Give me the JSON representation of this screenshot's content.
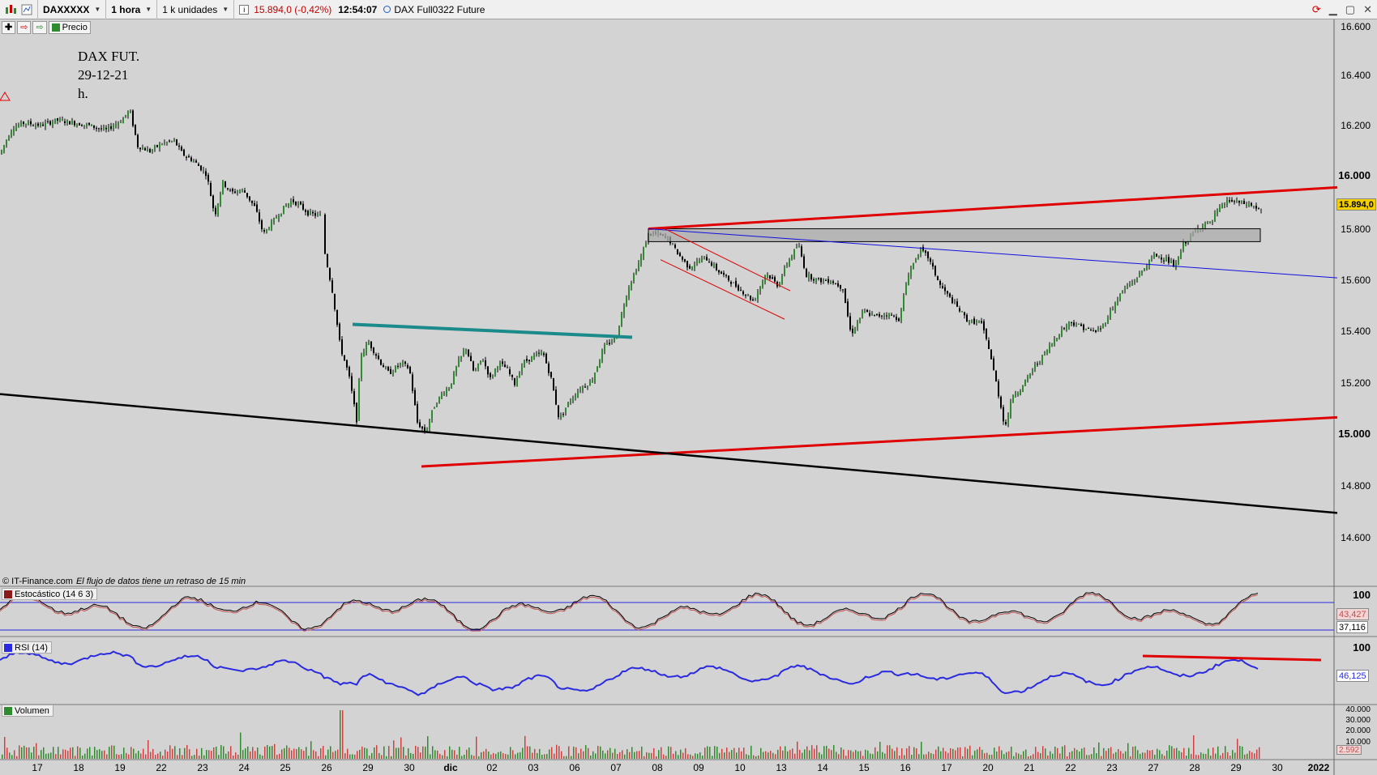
{
  "toolbar": {
    "symbol": "DAXXXXX",
    "interval": "1 hora",
    "units": "1 k unidades",
    "price_change": "15.894,0 (-0,42%)",
    "time": "12:54:07",
    "instrument": "DAX Full0322 Future",
    "price_button": "Precio",
    "icons": [
      "chart-type-icon",
      "compare-icon",
      "info-icon",
      "refresh-icon",
      "minimize-icon",
      "maximize-icon",
      "close-icon",
      "add-indicator-icon",
      "export-icon",
      "price-type-icon"
    ]
  },
  "annotation": {
    "line1": "DAX FUT.",
    "line2": "29-12-21",
    "line3": "h."
  },
  "footer": {
    "copyright": "© IT-Finance.com",
    "delay_note": "El flujo de datos tiene un retraso de 15 min"
  },
  "main_axis": {
    "labels": [
      "16.600",
      "16.400",
      "16.200",
      "16.000",
      "15.800",
      "15.600",
      "15.400",
      "15.200",
      "15.000",
      "14.800",
      "14.600"
    ],
    "last_price": "15.894,0"
  },
  "stochastic": {
    "title": "Estocástico (14 6 3)",
    "axis_top": "100",
    "value1": "43,427",
    "value2": "37,116"
  },
  "rsi": {
    "title": "RSI (14)",
    "axis_top": "100",
    "value": "46,125"
  },
  "volume": {
    "title": "Volumen",
    "labels": [
      "40.000",
      "30.000",
      "20.000",
      "10.000"
    ],
    "value": "2.592"
  },
  "x_axis": {
    "labels": [
      "17",
      "18",
      "19",
      "22",
      "23",
      "24",
      "25",
      "26",
      "29",
      "30",
      "dic",
      "02",
      "03",
      "06",
      "07",
      "08",
      "09",
      "10",
      "13",
      "14",
      "15",
      "16",
      "17",
      "20",
      "21",
      "22",
      "23",
      "27",
      "28",
      "29",
      "30",
      "2022"
    ]
  },
  "colors": {
    "background": "#d3d3d3",
    "up_candle": "#2e8b2e",
    "down_candle": "#000000",
    "resistance": "#e00000",
    "teal_line": "#1a8a8a",
    "blue_line": "#1010e0",
    "rsi": "#2a2ae0"
  },
  "chart_data": {
    "type": "candlestick",
    "ylim": [
      14500,
      16650
    ],
    "ohlc_path": [
      [
        0,
        16130
      ],
      [
        15,
        16230
      ],
      [
        30,
        16250
      ],
      [
        50,
        16240
      ],
      [
        70,
        16260
      ],
      [
        90,
        16250
      ],
      [
        110,
        16240
      ],
      [
        130,
        16220
      ],
      [
        150,
        16260
      ],
      [
        160,
        16300
      ],
      [
        170,
        16160
      ],
      [
        185,
        16140
      ],
      [
        200,
        16170
      ],
      [
        215,
        16180
      ],
      [
        225,
        16130
      ],
      [
        240,
        16100
      ],
      [
        255,
        16050
      ],
      [
        265,
        15890
      ],
      [
        275,
        16020
      ],
      [
        285,
        15980
      ],
      [
        300,
        15990
      ],
      [
        315,
        15920
      ],
      [
        325,
        15820
      ],
      [
        335,
        15860
      ],
      [
        350,
        15920
      ],
      [
        360,
        15950
      ],
      [
        370,
        15930
      ],
      [
        380,
        15900
      ],
      [
        395,
        15890
      ],
      [
        400,
        15760
      ],
      [
        410,
        15600
      ],
      [
        420,
        15380
      ],
      [
        430,
        15280
      ],
      [
        440,
        15100
      ],
      [
        445,
        15350
      ],
      [
        455,
        15400
      ],
      [
        470,
        15320
      ],
      [
        480,
        15280
      ],
      [
        495,
        15320
      ],
      [
        505,
        15300
      ],
      [
        515,
        15090
      ],
      [
        525,
        15050
      ],
      [
        535,
        15150
      ],
      [
        545,
        15200
      ],
      [
        555,
        15230
      ],
      [
        565,
        15320
      ],
      [
        575,
        15380
      ],
      [
        585,
        15280
      ],
      [
        595,
        15340
      ],
      [
        605,
        15260
      ],
      [
        615,
        15320
      ],
      [
        625,
        15300
      ],
      [
        635,
        15240
      ],
      [
        645,
        15320
      ],
      [
        655,
        15340
      ],
      [
        670,
        15360
      ],
      [
        680,
        15260
      ],
      [
        690,
        15100
      ],
      [
        700,
        15160
      ],
      [
        715,
        15220
      ],
      [
        730,
        15250
      ],
      [
        745,
        15380
      ],
      [
        760,
        15420
      ],
      [
        775,
        15610
      ],
      [
        790,
        15720
      ],
      [
        800,
        15820
      ],
      [
        810,
        15820
      ],
      [
        825,
        15800
      ],
      [
        835,
        15750
      ],
      [
        850,
        15690
      ],
      [
        870,
        15730
      ],
      [
        885,
        15680
      ],
      [
        900,
        15640
      ],
      [
        915,
        15600
      ],
      [
        930,
        15560
      ],
      [
        945,
        15670
      ],
      [
        960,
        15620
      ],
      [
        970,
        15700
      ],
      [
        985,
        15780
      ],
      [
        995,
        15660
      ],
      [
        1010,
        15640
      ],
      [
        1025,
        15640
      ],
      [
        1040,
        15610
      ],
      [
        1050,
        15430
      ],
      [
        1065,
        15520
      ],
      [
        1080,
        15500
      ],
      [
        1095,
        15510
      ],
      [
        1110,
        15490
      ],
      [
        1120,
        15660
      ],
      [
        1135,
        15760
      ],
      [
        1145,
        15730
      ],
      [
        1160,
        15620
      ],
      [
        1175,
        15560
      ],
      [
        1185,
        15520
      ],
      [
        1195,
        15480
      ],
      [
        1210,
        15480
      ],
      [
        1220,
        15380
      ],
      [
        1230,
        15230
      ],
      [
        1240,
        15070
      ],
      [
        1250,
        15200
      ],
      [
        1260,
        15220
      ],
      [
        1275,
        15300
      ],
      [
        1290,
        15360
      ],
      [
        1305,
        15430
      ],
      [
        1320,
        15480
      ],
      [
        1335,
        15460
      ],
      [
        1350,
        15440
      ],
      [
        1360,
        15460
      ],
      [
        1370,
        15520
      ],
      [
        1385,
        15600
      ],
      [
        1400,
        15640
      ],
      [
        1415,
        15700
      ],
      [
        1425,
        15740
      ],
      [
        1440,
        15720
      ],
      [
        1450,
        15690
      ],
      [
        1460,
        15780
      ],
      [
        1475,
        15830
      ],
      [
        1485,
        15860
      ],
      [
        1495,
        15860
      ],
      [
        1500,
        15900
      ],
      [
        1515,
        15950
      ],
      [
        1530,
        15940
      ],
      [
        1545,
        15930
      ],
      [
        1555,
        15910
      ],
      [
        1560,
        15894
      ]
    ],
    "trendlines": [
      {
        "name": "upper-resistance",
        "from": [
          800,
          15840
        ],
        "to": [
          1650,
          16000
        ]
      },
      {
        "name": "lower-support",
        "from": [
          520,
          14920
        ],
        "to": [
          1650,
          15110
        ]
      },
      {
        "name": "long-support",
        "from": [
          0,
          15200
        ],
        "to": [
          1650,
          14740
        ]
      },
      {
        "name": "neckline",
        "from": [
          435,
          15470
        ],
        "to": [
          780,
          15420
        ]
      },
      {
        "name": "descending-blue",
        "from": [
          800,
          15840
        ],
        "to": [
          1650,
          15650
        ]
      },
      {
        "name": "channel-top",
        "from": [
          820,
          15840
        ],
        "to": [
          975,
          15600
        ]
      },
      {
        "name": "channel-bottom",
        "from": [
          815,
          15720
        ],
        "to": [
          968,
          15490
        ]
      }
    ],
    "zone": {
      "from_x": 800,
      "to_x": 1555,
      "low": 15790,
      "high": 15840
    }
  }
}
